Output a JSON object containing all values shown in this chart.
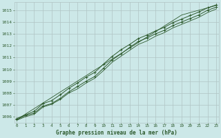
{
  "title": "Graphe pression niveau de la mer (hPa)",
  "bg_color": "#cce8e8",
  "grid_color": "#b0c4c4",
  "line_color": "#2d5a2d",
  "x_ticks": [
    0,
    1,
    2,
    3,
    4,
    5,
    6,
    7,
    8,
    9,
    10,
    11,
    12,
    13,
    14,
    15,
    16,
    17,
    18,
    19,
    20,
    21,
    22,
    23
  ],
  "y_ticks": [
    1006,
    1007,
    1008,
    1009,
    1010,
    1011,
    1012,
    1013,
    1014,
    1015
  ],
  "xlim": [
    -0.3,
    23.3
  ],
  "ylim": [
    1005.5,
    1015.7
  ],
  "series1": [
    1005.75,
    1006.1,
    1006.3,
    1006.9,
    1007.1,
    1007.55,
    1008.1,
    1008.55,
    1009.0,
    1009.4,
    1010.1,
    1010.8,
    1011.3,
    1011.85,
    1012.35,
    1012.65,
    1013.0,
    1013.3,
    1013.7,
    1014.0,
    1014.3,
    1014.6,
    1015.0,
    1015.25
  ],
  "series2": [
    1005.85,
    1006.15,
    1006.45,
    1007.1,
    1007.35,
    1007.85,
    1008.4,
    1008.85,
    1009.35,
    1009.75,
    1010.45,
    1011.1,
    1011.65,
    1012.1,
    1012.6,
    1012.9,
    1013.25,
    1013.55,
    1013.95,
    1014.25,
    1014.55,
    1014.85,
    1015.2,
    1015.45
  ],
  "series3": [
    1005.7,
    1006.0,
    1006.2,
    1006.8,
    1007.05,
    1007.45,
    1008.0,
    1008.35,
    1008.85,
    1009.25,
    1009.9,
    1010.6,
    1011.1,
    1011.6,
    1012.1,
    1012.4,
    1012.8,
    1013.1,
    1013.5,
    1013.8,
    1014.1,
    1014.4,
    1014.8,
    1015.1
  ],
  "trend": [
    1005.75,
    1006.22,
    1006.68,
    1007.15,
    1007.61,
    1008.08,
    1008.54,
    1009.01,
    1009.47,
    1009.94,
    1010.4,
    1010.87,
    1011.33,
    1011.8,
    1012.26,
    1012.73,
    1013.19,
    1013.66,
    1014.12,
    1014.59,
    1014.8,
    1015.0,
    1015.2,
    1015.4
  ]
}
